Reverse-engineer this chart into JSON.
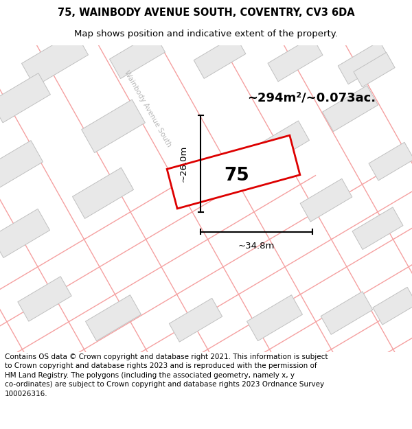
{
  "title": "75, WAINBODY AVENUE SOUTH, COVENTRY, CV3 6DA",
  "subtitle": "Map shows position and indicative extent of the property.",
  "footer": "Contains OS data © Crown copyright and database right 2021. This information is subject\nto Crown copyright and database rights 2023 and is reproduced with the permission of\nHM Land Registry. The polygons (including the associated geometry, namely x, y\nco-ordinates) are subject to Crown copyright and database rights 2023 Ordnance Survey\n100026316.",
  "area_label": "~294m²/~0.073ac.",
  "width_label": "~34.8m",
  "height_label": "~26.0m",
  "property_number": "75",
  "road_label": "Wainbody Avenue South",
  "map_bg": "#f7f7f7",
  "building_color": "#e8e8e8",
  "building_edge": "#c0c0c0",
  "road_line_color": "#f5a0a0",
  "highlight_color": "#dd0000",
  "title_fontsize": 10.5,
  "subtitle_fontsize": 9.5,
  "footer_fontsize": 7.5
}
